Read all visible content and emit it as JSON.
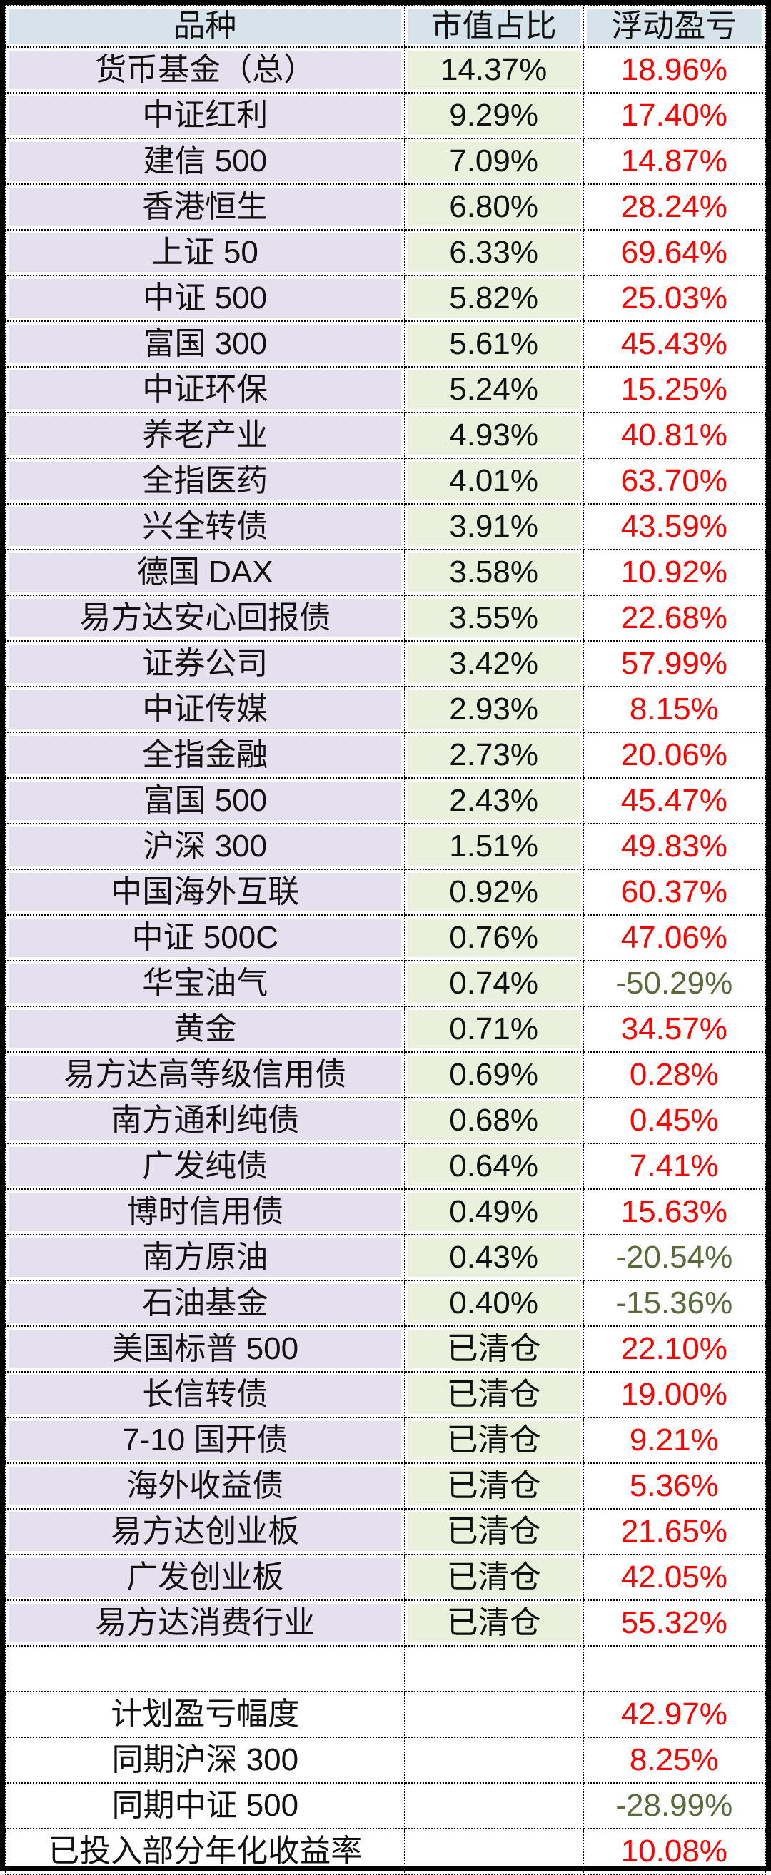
{
  "table": {
    "headers": [
      {
        "label": "品种"
      },
      {
        "label": "市值占比"
      },
      {
        "label": "浮动盈亏"
      }
    ],
    "rows": [
      {
        "name": "货币基金（总）",
        "share": "14.37%",
        "pnl": "18.96%",
        "neg": false,
        "section": "holding"
      },
      {
        "name": "中证红利",
        "share": "9.29%",
        "pnl": "17.40%",
        "neg": false,
        "section": "holding"
      },
      {
        "name": "建信 500",
        "share": "7.09%",
        "pnl": "14.87%",
        "neg": false,
        "section": "holding"
      },
      {
        "name": "香港恒生",
        "share": "6.80%",
        "pnl": "28.24%",
        "neg": false,
        "section": "holding"
      },
      {
        "name": "上证 50",
        "share": "6.33%",
        "pnl": "69.64%",
        "neg": false,
        "section": "holding"
      },
      {
        "name": "中证 500",
        "share": "5.82%",
        "pnl": "25.03%",
        "neg": false,
        "section": "holding"
      },
      {
        "name": "富国 300",
        "share": "5.61%",
        "pnl": "45.43%",
        "neg": false,
        "section": "holding"
      },
      {
        "name": "中证环保",
        "share": "5.24%",
        "pnl": "15.25%",
        "neg": false,
        "section": "holding"
      },
      {
        "name": "养老产业",
        "share": "4.93%",
        "pnl": "40.81%",
        "neg": false,
        "section": "holding"
      },
      {
        "name": "全指医药",
        "share": "4.01%",
        "pnl": "63.70%",
        "neg": false,
        "section": "holding"
      },
      {
        "name": "兴全转债",
        "share": "3.91%",
        "pnl": "43.59%",
        "neg": false,
        "section": "holding"
      },
      {
        "name": "德国 DAX",
        "share": "3.58%",
        "pnl": "10.92%",
        "neg": false,
        "section": "holding"
      },
      {
        "name": "易方达安心回报债",
        "share": "3.55%",
        "pnl": "22.68%",
        "neg": false,
        "section": "holding"
      },
      {
        "name": "证券公司",
        "share": "3.42%",
        "pnl": "57.99%",
        "neg": false,
        "section": "holding"
      },
      {
        "name": "中证传媒",
        "share": "2.93%",
        "pnl": "8.15%",
        "neg": false,
        "section": "holding"
      },
      {
        "name": "全指金融",
        "share": "2.73%",
        "pnl": "20.06%",
        "neg": false,
        "section": "holding"
      },
      {
        "name": "富国 500",
        "share": "2.43%",
        "pnl": "45.47%",
        "neg": false,
        "section": "holding"
      },
      {
        "name": "沪深 300",
        "share": "1.51%",
        "pnl": "49.83%",
        "neg": false,
        "section": "holding"
      },
      {
        "name": "中国海外互联",
        "share": "0.92%",
        "pnl": "60.37%",
        "neg": false,
        "section": "holding"
      },
      {
        "name": "中证 500C",
        "share": "0.76%",
        "pnl": "47.06%",
        "neg": false,
        "section": "holding"
      },
      {
        "name": "华宝油气",
        "share": "0.74%",
        "pnl": "-50.29%",
        "neg": true,
        "section": "holding"
      },
      {
        "name": "黄金",
        "share": "0.71%",
        "pnl": "34.57%",
        "neg": false,
        "section": "holding"
      },
      {
        "name": "易方达高等级信用债",
        "share": "0.69%",
        "pnl": "0.28%",
        "neg": false,
        "section": "holding"
      },
      {
        "name": "南方通利纯债",
        "share": "0.68%",
        "pnl": "0.45%",
        "neg": false,
        "section": "holding"
      },
      {
        "name": "广发纯债",
        "share": "0.64%",
        "pnl": "7.41%",
        "neg": false,
        "section": "holding"
      },
      {
        "name": "博时信用债",
        "share": "0.49%",
        "pnl": "15.63%",
        "neg": false,
        "section": "holding"
      },
      {
        "name": "南方原油",
        "share": "0.43%",
        "pnl": "-20.54%",
        "neg": true,
        "section": "holding"
      },
      {
        "name": "石油基金",
        "share": "0.40%",
        "pnl": "-15.36%",
        "neg": true,
        "section": "holding"
      },
      {
        "name": "美国标普 500",
        "share": "已清仓",
        "pnl": "22.10%",
        "neg": false,
        "section": "cleared"
      },
      {
        "name": "长信转债",
        "share": "已清仓",
        "pnl": "19.00%",
        "neg": false,
        "section": "cleared"
      },
      {
        "name": "7-10 国开债",
        "share": "已清仓",
        "pnl": "9.21%",
        "neg": false,
        "section": "cleared"
      },
      {
        "name": "海外收益债",
        "share": "已清仓",
        "pnl": "5.36%",
        "neg": false,
        "section": "cleared"
      },
      {
        "name": "易方达创业板",
        "share": "已清仓",
        "pnl": "21.65%",
        "neg": false,
        "section": "cleared"
      },
      {
        "name": "广发创业板",
        "share": "已清仓",
        "pnl": "42.05%",
        "neg": false,
        "section": "cleared"
      },
      {
        "name": "易方达消费行业",
        "share": "已清仓",
        "pnl": "55.32%",
        "neg": false,
        "section": "cleared"
      },
      {
        "name": "",
        "share": "",
        "pnl": "",
        "neg": false,
        "section": "blank"
      },
      {
        "name": "计划盈亏幅度",
        "share": "",
        "pnl": "42.97%",
        "neg": false,
        "section": "summary"
      },
      {
        "name": "同期沪深 300",
        "share": "",
        "pnl": "8.25%",
        "neg": false,
        "section": "summary"
      },
      {
        "name": "同期中证 500",
        "share": "",
        "pnl": "-28.99%",
        "neg": true,
        "section": "summary"
      },
      {
        "name": "已投入部分年化收益率",
        "share": "",
        "pnl": "10.08%",
        "neg": false,
        "section": "summary"
      }
    ]
  },
  "colors": {
    "header_bg": "#D6E3EA",
    "name_col_bg": "#E5E0ED",
    "share_col_bg": "#EBF0DC",
    "profit_red": "#FF0000",
    "loss_green": "#5A6A3A",
    "border_black": "#000000",
    "text_black": "#111111"
  }
}
